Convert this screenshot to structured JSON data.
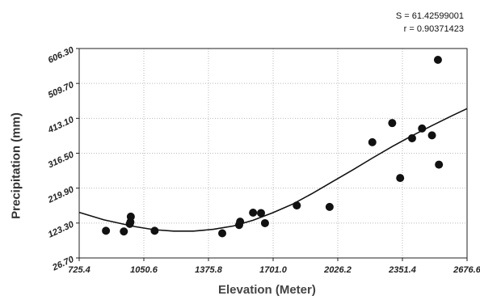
{
  "stats": {
    "s_text": "S = 61.42599001",
    "r_text": "r = 0.90371423"
  },
  "chart_data": {
    "type": "scatter",
    "xlabel": "Elevation (Meter)",
    "ylabel": "Precipitation (mm)",
    "xlim": [
      725.4,
      2676.6
    ],
    "ylim": [
      26.7,
      606.3
    ],
    "x_ticks": [
      "725.4",
      "1050.6",
      "1375.8",
      "1701.0",
      "2026.2",
      "2351.4",
      "2676.6"
    ],
    "y_ticks": [
      "26.70",
      "123.30",
      "219.90",
      "316.50",
      "413.10",
      "509.70",
      "606.30"
    ],
    "grid": true,
    "point_color": "#111111",
    "curve_color": "#111111",
    "points": [
      {
        "x": 860,
        "y": 102
      },
      {
        "x": 950,
        "y": 100
      },
      {
        "x": 980,
        "y": 121
      },
      {
        "x": 983,
        "y": 126
      },
      {
        "x": 985,
        "y": 141
      },
      {
        "x": 1105,
        "y": 102
      },
      {
        "x": 1445,
        "y": 95
      },
      {
        "x": 1530,
        "y": 118
      },
      {
        "x": 1535,
        "y": 127
      },
      {
        "x": 1600,
        "y": 152
      },
      {
        "x": 1640,
        "y": 151
      },
      {
        "x": 1660,
        "y": 123
      },
      {
        "x": 1820,
        "y": 172
      },
      {
        "x": 1985,
        "y": 168
      },
      {
        "x": 2200,
        "y": 347
      },
      {
        "x": 2300,
        "y": 400
      },
      {
        "x": 2340,
        "y": 248
      },
      {
        "x": 2400,
        "y": 358
      },
      {
        "x": 2450,
        "y": 385
      },
      {
        "x": 2500,
        "y": 366
      },
      {
        "x": 2535,
        "y": 285
      },
      {
        "x": 2530,
        "y": 575
      }
    ],
    "fit_curve": [
      {
        "x": 725.4,
        "y": 153
      },
      {
        "x": 850,
        "y": 132
      },
      {
        "x": 1000,
        "y": 114
      },
      {
        "x": 1100,
        "y": 105
      },
      {
        "x": 1200,
        "y": 101
      },
      {
        "x": 1300,
        "y": 101
      },
      {
        "x": 1400,
        "y": 106
      },
      {
        "x": 1500,
        "y": 115
      },
      {
        "x": 1600,
        "y": 131
      },
      {
        "x": 1700,
        "y": 152
      },
      {
        "x": 1800,
        "y": 176
      },
      {
        "x": 1900,
        "y": 206
      },
      {
        "x": 2000,
        "y": 238
      },
      {
        "x": 2100,
        "y": 270
      },
      {
        "x": 2200,
        "y": 303
      },
      {
        "x": 2300,
        "y": 335
      },
      {
        "x": 2400,
        "y": 365
      },
      {
        "x": 2500,
        "y": 393
      },
      {
        "x": 2600,
        "y": 420
      },
      {
        "x": 2676.6,
        "y": 440
      }
    ]
  }
}
